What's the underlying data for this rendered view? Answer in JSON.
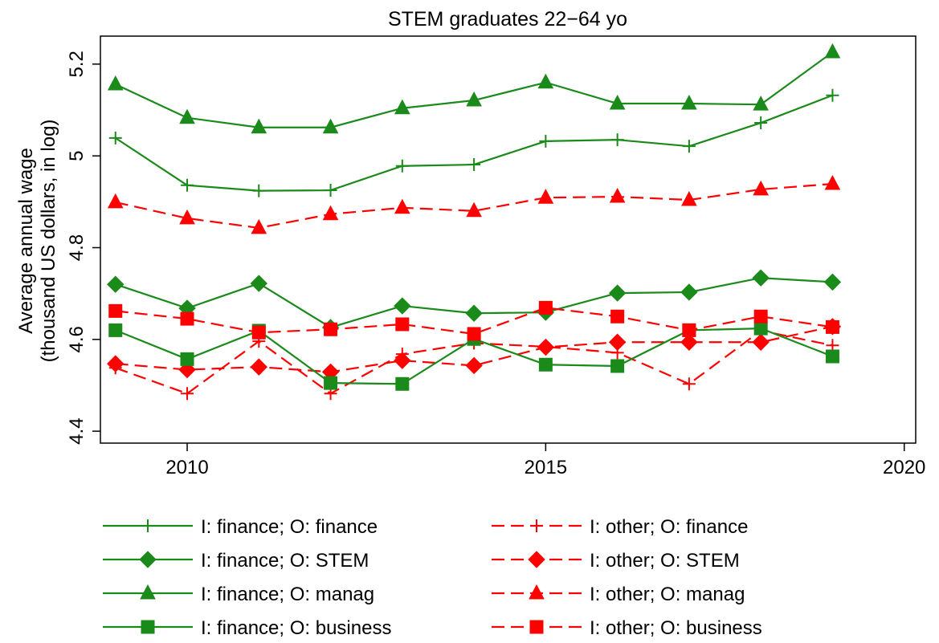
{
  "chart_data": {
    "type": "line",
    "title": "STEM graduates 22−64 yo",
    "ylabel": [
      "Average annual wage",
      "(thousand US dollars, in log)"
    ],
    "x": [
      2009,
      2010,
      2011,
      2012,
      2013,
      2014,
      2015,
      2016,
      2017,
      2018,
      2019
    ],
    "xlim": [
      2008.79,
      2020.16
    ],
    "xticks": [
      2010,
      2015,
      2020
    ],
    "ylim": [
      4.374,
      5.261
    ],
    "yticks": [
      4.4,
      4.6,
      4.8,
      5,
      5.2
    ],
    "series": [
      {
        "name": "I: finance; O: finance",
        "color": "#1a8a1a",
        "marker": "plus",
        "line_style": "solid",
        "values": [
          5.039,
          4.936,
          4.924,
          4.925,
          4.978,
          4.981,
          5.032,
          5.035,
          5.021,
          5.072,
          5.132
        ]
      },
      {
        "name": "I: other; O: finance",
        "color": "#ff0000",
        "marker": "plus",
        "line_style": "dashed",
        "values": [
          4.538,
          4.482,
          4.596,
          4.482,
          4.568,
          4.592,
          4.584,
          4.571,
          4.503,
          4.619,
          4.587
        ]
      },
      {
        "name": "I: finance; O: STEM",
        "color": "#1a8a1a",
        "marker": "diamond",
        "line_style": "solid",
        "values": [
          4.72,
          4.668,
          4.722,
          4.626,
          4.673,
          4.657,
          4.659,
          4.701,
          4.703,
          4.734,
          4.725
        ]
      },
      {
        "name": "I: other; O: STEM",
        "color": "#ff0000",
        "marker": "diamond",
        "line_style": "dashed",
        "values": [
          4.547,
          4.534,
          4.54,
          4.529,
          4.554,
          4.543,
          4.583,
          4.594,
          4.594,
          4.594,
          4.628
        ]
      },
      {
        "name": "I: finance; O: manag",
        "color": "#1a8a1a",
        "marker": "triangle",
        "line_style": "solid",
        "values": [
          5.156,
          5.083,
          5.062,
          5.062,
          5.104,
          5.121,
          5.16,
          5.114,
          5.114,
          5.112,
          5.226
        ]
      },
      {
        "name": "I: other; O: manag",
        "color": "#ff0000",
        "marker": "triangle",
        "line_style": "dashed",
        "values": [
          4.899,
          4.864,
          4.843,
          4.873,
          4.887,
          4.88,
          4.909,
          4.911,
          4.904,
          4.927,
          4.939
        ]
      },
      {
        "name": "I: finance; O: business",
        "color": "#1a8a1a",
        "marker": "square",
        "line_style": "solid",
        "values": [
          4.62,
          4.557,
          4.619,
          4.505,
          4.503,
          4.601,
          4.545,
          4.542,
          4.62,
          4.624,
          4.563
        ]
      },
      {
        "name": "I: other; O: business",
        "color": "#ff0000",
        "marker": "square",
        "line_style": "dashed",
        "values": [
          4.662,
          4.645,
          4.615,
          4.622,
          4.633,
          4.612,
          4.669,
          4.65,
          4.62,
          4.65,
          4.627
        ]
      }
    ]
  }
}
